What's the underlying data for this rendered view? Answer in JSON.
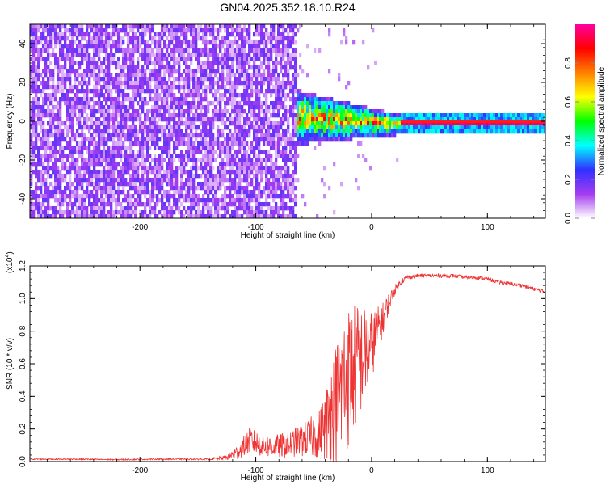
{
  "figure_title": "GN04.2025.352.18.10.R24",
  "chart_data": [
    {
      "type": "heatmap",
      "title": "GN04.2025.352.18.10.R24",
      "xlabel": "Height of straight line (km)",
      "ylabel": "Frequency (Hz)",
      "xlim": [
        -295,
        150
      ],
      "ylim": [
        -50,
        50
      ],
      "x_ticks": [
        -200,
        -100,
        0,
        100
      ],
      "x_tick_labels": [
        "-200",
        "-100",
        "0",
        "100"
      ],
      "y_ticks": [
        -40,
        -20,
        0,
        20,
        40
      ],
      "y_tick_labels": [
        "-40",
        "-20",
        "0",
        "20",
        "40"
      ],
      "noise_region_km": [
        -295,
        -65
      ],
      "signal_spread_region_km": [
        -75,
        25
      ],
      "carrier_line": {
        "x_start_km": 25,
        "x_end_km": 150,
        "frequency_hz": 0
      },
      "colorbar": {
        "label": "Normalized spectral amplitude",
        "range": [
          0,
          1
        ],
        "ticks": [
          0.0,
          0.2,
          0.4,
          0.6,
          0.8
        ],
        "tick_labels": [
          "0.0",
          "0.2",
          "0.4",
          "0.6",
          "0.8"
        ],
        "colors": [
          "#ffffff",
          "#a43cf0",
          "#3030ff",
          "#00ffff",
          "#00ff00",
          "#ffff00",
          "#ff8000",
          "#ff0000",
          "#ff00a0"
        ]
      }
    },
    {
      "type": "line",
      "xlabel": "Height of straight line (km)",
      "ylabel": "SNR (10 * v/v)",
      "y_scale_label": "(x10",
      "y_scale_exponent": "4",
      "y_scale_suffix": ")",
      "xlim": [
        -295,
        150
      ],
      "ylim": [
        0,
        1.2
      ],
      "x_ticks": [
        -200,
        -100,
        0,
        100
      ],
      "x_tick_labels": [
        "-200",
        "-100",
        "0",
        "100"
      ],
      "y_ticks": [
        0.0,
        0.2,
        0.4,
        0.6,
        0.8,
        1.0,
        1.2
      ],
      "y_tick_labels": [
        "0.0",
        "0.2",
        "0.4",
        "0.6",
        "0.8",
        "1.0",
        "1.2"
      ],
      "series": [
        {
          "name": "SNR",
          "color": "#ee3333",
          "x": [
            -295,
            -260,
            -220,
            -180,
            -140,
            -125,
            -115,
            -105,
            -95,
            -85,
            -75,
            -65,
            -55,
            -45,
            -40,
            -35,
            -30,
            -25,
            -20,
            -15,
            -10,
            -5,
            0,
            5,
            10,
            15,
            20,
            25,
            30,
            40,
            50,
            60,
            70,
            80,
            90,
            100,
            110,
            120,
            130,
            140,
            150
          ],
          "values": [
            0.015,
            0.015,
            0.012,
            0.015,
            0.015,
            0.025,
            0.06,
            0.13,
            0.1,
            0.09,
            0.1,
            0.12,
            0.14,
            0.17,
            0.22,
            0.3,
            0.36,
            0.45,
            0.52,
            0.58,
            0.62,
            0.66,
            0.72,
            0.8,
            0.88,
            0.98,
            1.05,
            1.1,
            1.13,
            1.14,
            1.14,
            1.14,
            1.14,
            1.13,
            1.13,
            1.12,
            1.1,
            1.09,
            1.08,
            1.06,
            1.04
          ],
          "noise": [
            0.004,
            0.004,
            0.004,
            0.004,
            0.005,
            0.015,
            0.05,
            0.08,
            0.07,
            0.07,
            0.08,
            0.09,
            0.12,
            0.15,
            0.22,
            0.32,
            0.4,
            0.45,
            0.45,
            0.4,
            0.35,
            0.28,
            0.22,
            0.15,
            0.1,
            0.06,
            0.03,
            0.02,
            0.015,
            0.012,
            0.012,
            0.012,
            0.012,
            0.012,
            0.012,
            0.012,
            0.012,
            0.012,
            0.012,
            0.012,
            0.012
          ]
        }
      ]
    }
  ]
}
